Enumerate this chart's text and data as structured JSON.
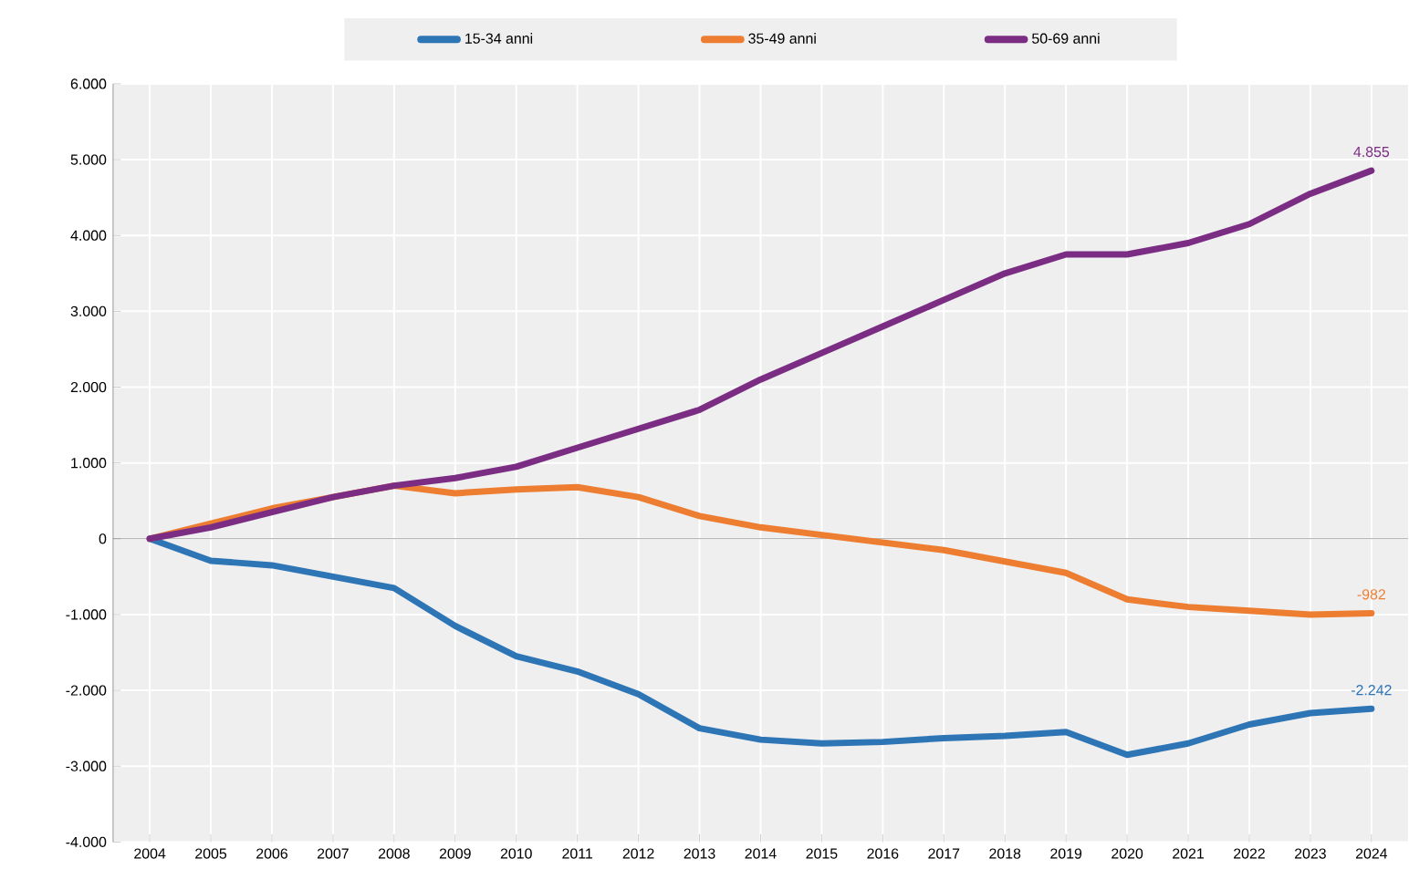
{
  "chart_data": {
    "type": "line",
    "categories": [
      "2004",
      "2005",
      "2006",
      "2007",
      "2008",
      "2009",
      "2010",
      "2011",
      "2012",
      "2013",
      "2014",
      "2015",
      "2016",
      "2017",
      "2018",
      "2019",
      "2020",
      "2021",
      "2022",
      "2023",
      "2024"
    ],
    "series": [
      {
        "name": "15-34 anni",
        "color": "#2e75b6",
        "values": [
          0,
          -290,
          -350,
          -500,
          -650,
          -1150,
          -1550,
          -1750,
          -2050,
          -2500,
          -2650,
          -2700,
          -2680,
          -2630,
          -2600,
          -2550,
          -2850,
          -2700,
          -2450,
          -2300,
          -2242
        ],
        "value_labels": [
          null,
          null,
          null,
          null,
          null,
          null,
          null,
          null,
          null,
          null,
          null,
          null,
          null,
          null,
          null,
          null,
          null,
          null,
          null,
          null,
          "-2.242"
        ]
      },
      {
        "name": "35-49 anni",
        "color": "#ed7d31",
        "values": [
          0,
          200,
          400,
          550,
          700,
          600,
          650,
          680,
          550,
          300,
          150,
          50,
          -50,
          -150,
          -300,
          -450,
          -800,
          -900,
          -950,
          -1000,
          -982
        ],
        "value_labels": [
          null,
          null,
          null,
          null,
          null,
          null,
          null,
          null,
          null,
          null,
          null,
          null,
          null,
          null,
          null,
          null,
          null,
          null,
          null,
          null,
          "-982"
        ]
      },
      {
        "name": "50-69 anni",
        "color": "#7b2c83",
        "values": [
          0,
          150,
          350,
          550,
          700,
          800,
          950,
          1200,
          1450,
          1700,
          2100,
          2450,
          2800,
          3150,
          3500,
          3750,
          3750,
          3900,
          4150,
          4550,
          4855
        ],
        "value_labels": [
          null,
          null,
          null,
          null,
          null,
          null,
          null,
          null,
          null,
          null,
          null,
          null,
          null,
          null,
          null,
          null,
          null,
          null,
          null,
          null,
          "4.855"
        ]
      }
    ],
    "ylim": [
      -4000,
      6000
    ],
    "yticks": [
      {
        "value": -4000,
        "label": "-4.000"
      },
      {
        "value": -3000,
        "label": "-3.000"
      },
      {
        "value": -2000,
        "label": "-2.000"
      },
      {
        "value": -1000,
        "label": "-1.000"
      },
      0,
      {
        "value": 1000,
        "label": "1.000"
      },
      {
        "value": 2000,
        "label": "2.000"
      },
      {
        "value": 3000,
        "label": "3.000"
      },
      {
        "value": 4000,
        "label": "4.000"
      },
      {
        "value": 5000,
        "label": "5.000"
      },
      {
        "value": 6000,
        "label": "6.000"
      }
    ],
    "grid": true,
    "legend": "top",
    "marker": "none",
    "line_style": "solid"
  }
}
